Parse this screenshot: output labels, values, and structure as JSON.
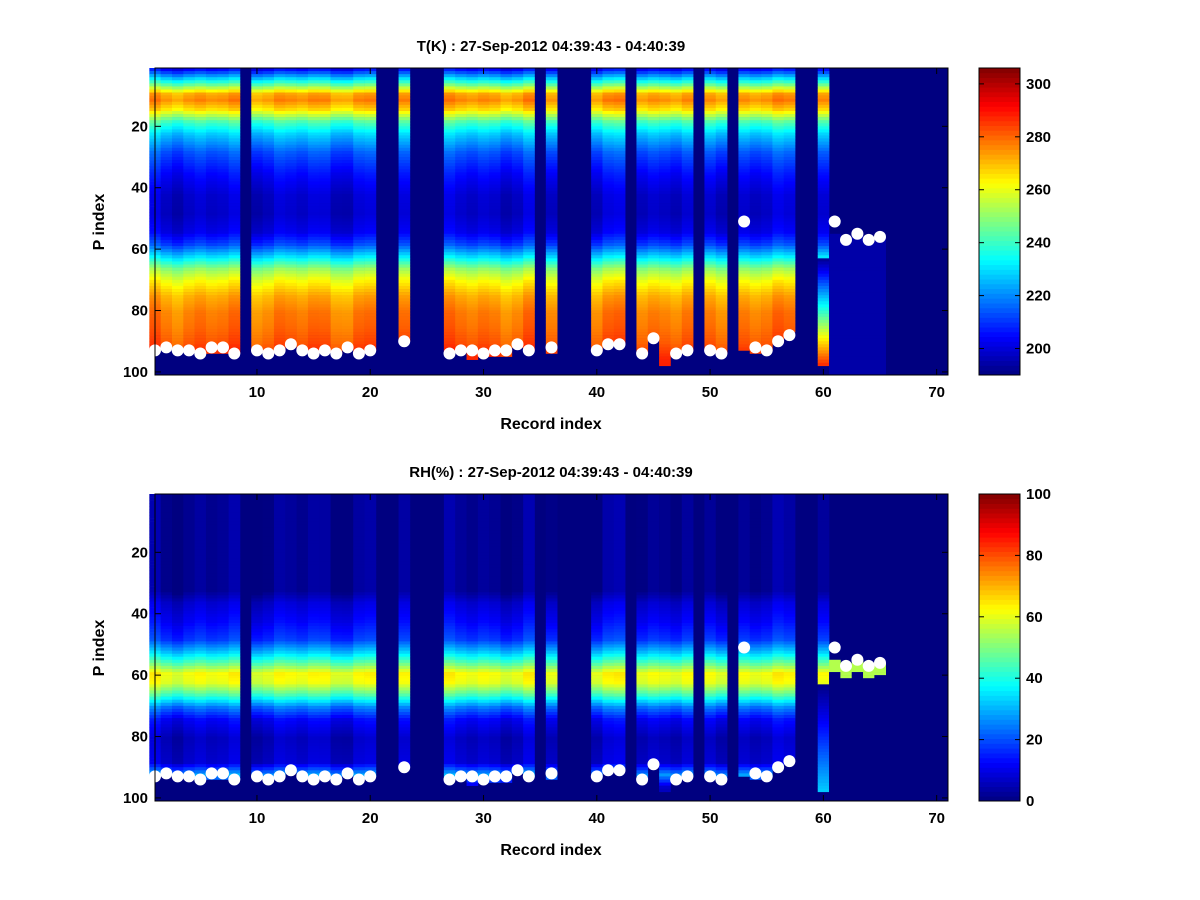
{
  "chart_data": [
    {
      "type": "heatmap",
      "title": "T(K) : 27-Sep-2012 04:39:43 - 04:40:39",
      "xlabel": "Record index",
      "ylabel": "P index",
      "xlim": [
        1,
        71
      ],
      "ylim": [
        1,
        101
      ],
      "y_reversed": true,
      "colormap": "jet",
      "clim": [
        190,
        306
      ],
      "x_ticks": [
        "10",
        "20",
        "30",
        "40",
        "50",
        "60",
        "70"
      ],
      "y_ticks": [
        "20",
        "40",
        "60",
        "80",
        "100"
      ],
      "colorbar_ticks": [
        "200",
        "220",
        "240",
        "260",
        "280",
        "300"
      ],
      "profile": {
        "p_index": [
          1,
          6,
          9,
          11,
          14,
          18,
          22,
          28,
          35,
          42,
          48,
          54,
          58,
          62,
          66,
          70,
          75,
          80,
          85,
          90,
          95,
          101
        ],
        "value": [
          205,
          245,
          272,
          276,
          266,
          242,
          228,
          214,
          205,
          199,
          198,
          202,
          212,
          230,
          250,
          262,
          272,
          277,
          279,
          282,
          288,
          290
        ]
      },
      "missing_records": [
        9,
        21,
        22,
        24,
        25,
        26,
        35,
        37,
        38,
        39,
        43,
        49,
        52,
        58,
        59,
        66,
        67,
        68,
        69,
        70
      ],
      "surface_level": [
        93,
        92,
        93,
        93,
        94,
        94,
        94,
        94,
        0,
        93,
        94,
        93,
        91,
        93,
        94,
        93,
        94,
        92,
        94,
        93,
        0,
        0,
        90,
        0,
        0,
        0,
        94,
        93,
        96,
        95,
        95,
        95,
        92,
        93,
        0,
        94,
        0,
        0,
        0,
        93,
        91,
        91,
        0,
        94,
        89,
        98,
        94,
        93,
        0,
        93,
        94,
        0,
        93,
        94,
        93,
        90,
        87,
        0,
        0,
        98,
        55,
        57,
        55,
        57,
        56
      ],
      "markers": {
        "x": [
          1,
          2,
          3,
          4,
          5,
          6,
          7,
          8,
          10,
          11,
          12,
          13,
          14,
          15,
          16,
          17,
          18,
          19,
          20,
          23,
          27,
          28,
          29,
          30,
          31,
          32,
          33,
          34,
          36,
          40,
          41,
          42,
          44,
          45,
          47,
          48,
          50,
          51,
          53,
          54,
          55,
          56,
          57,
          61,
          62,
          63,
          64,
          65
        ],
        "y": [
          93,
          92,
          93,
          93,
          94,
          92,
          92,
          94,
          93,
          94,
          93,
          91,
          93,
          94,
          93,
          94,
          92,
          94,
          93,
          90,
          94,
          93,
          93,
          94,
          93,
          93,
          91,
          93,
          92,
          93,
          91,
          91,
          94,
          89,
          94,
          93,
          93,
          94,
          51,
          92,
          93,
          90,
          88,
          51,
          57,
          55,
          57,
          56
        ]
      }
    },
    {
      "type": "heatmap",
      "title": "RH(%) : 27-Sep-2012 04:39:43 - 04:40:39",
      "xlabel": "Record index",
      "ylabel": "P index",
      "xlim": [
        1,
        71
      ],
      "ylim": [
        1,
        101
      ],
      "y_reversed": true,
      "colormap": "jet",
      "clim": [
        0,
        100
      ],
      "x_ticks": [
        "10",
        "20",
        "30",
        "40",
        "50",
        "60",
        "70"
      ],
      "y_ticks": [
        "20",
        "40",
        "60",
        "80",
        "100"
      ],
      "colorbar_ticks": [
        "0",
        "20",
        "40",
        "60",
        "80",
        "100"
      ],
      "profile": {
        "p_index": [
          1,
          32,
          36,
          42,
          48,
          52,
          56,
          59,
          62,
          66,
          70,
          74,
          80,
          88,
          92,
          96,
          101
        ],
        "value": [
          2,
          2,
          8,
          12,
          18,
          32,
          48,
          62,
          60,
          44,
          24,
          12,
          6,
          8,
          28,
          8,
          2
        ]
      },
      "missing_records": [
        9,
        21,
        22,
        24,
        25,
        26,
        35,
        37,
        38,
        39,
        43,
        49,
        52,
        58,
        59,
        66,
        67,
        68,
        69,
        70
      ],
      "surface_level": [
        93,
        92,
        93,
        93,
        94,
        94,
        94,
        94,
        0,
        93,
        94,
        93,
        91,
        93,
        94,
        93,
        94,
        92,
        94,
        93,
        0,
        0,
        90,
        0,
        0,
        0,
        94,
        93,
        96,
        95,
        95,
        95,
        92,
        93,
        0,
        94,
        0,
        0,
        0,
        93,
        91,
        91,
        0,
        94,
        89,
        98,
        94,
        93,
        0,
        93,
        94,
        0,
        93,
        94,
        93,
        90,
        87,
        0,
        0,
        98,
        55,
        57,
        55,
        57,
        56
      ],
      "markers": {
        "x": [
          1,
          2,
          3,
          4,
          5,
          6,
          7,
          8,
          10,
          11,
          12,
          13,
          14,
          15,
          16,
          17,
          18,
          19,
          20,
          23,
          27,
          28,
          29,
          30,
          31,
          32,
          33,
          34,
          36,
          40,
          41,
          42,
          44,
          45,
          47,
          48,
          50,
          51,
          53,
          54,
          55,
          56,
          57,
          61,
          62,
          63,
          64,
          65
        ],
        "y": [
          93,
          92,
          93,
          93,
          94,
          92,
          92,
          94,
          93,
          94,
          93,
          91,
          93,
          94,
          93,
          94,
          92,
          94,
          93,
          90,
          94,
          93,
          93,
          94,
          93,
          93,
          91,
          93,
          92,
          93,
          91,
          91,
          94,
          89,
          94,
          93,
          93,
          94,
          51,
          92,
          93,
          90,
          88,
          51,
          57,
          55,
          57,
          56
        ]
      }
    }
  ]
}
